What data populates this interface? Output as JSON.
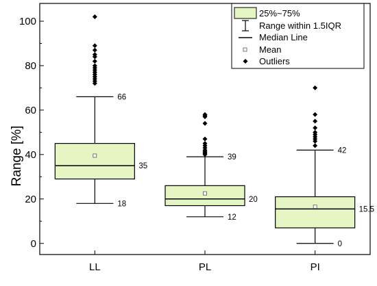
{
  "chart_data": {
    "type": "box",
    "ylabel": "Range [%]",
    "ylim": [
      -5,
      108
    ],
    "yticks": [
      0,
      20,
      40,
      60,
      80,
      100
    ],
    "box_fill": "#e5f5c4",
    "categories": [
      "LL",
      "PL",
      "PI"
    ],
    "boxes": [
      {
        "name": "LL",
        "whisker_low": 18,
        "q1": 29,
        "median": 35,
        "q3": 45,
        "whisker_high": 66,
        "mean": 39.5,
        "labels": {
          "high": "66",
          "median": "35",
          "low": "18"
        },
        "outliers": [
          72,
          73,
          74,
          75,
          76,
          77,
          78,
          79,
          80,
          82,
          84,
          85,
          87,
          89,
          102
        ]
      },
      {
        "name": "PL",
        "whisker_low": 12,
        "q1": 17,
        "median": 20,
        "q3": 26,
        "whisker_high": 39,
        "mean": 22.5,
        "labels": {
          "high": "39",
          "median": "20",
          "low": "12"
        },
        "outliers": [
          40,
          40.5,
          41,
          41.5,
          42,
          43,
          44,
          45,
          47,
          54,
          57,
          57.5,
          58
        ]
      },
      {
        "name": "PI",
        "whisker_low": 0,
        "q1": 7,
        "median": 15.5,
        "q3": 21,
        "whisker_high": 42,
        "mean": 16.5,
        "labels": {
          "high": "42",
          "median": "15.5",
          "low": "0"
        },
        "outliers": [
          44,
          46,
          47,
          48,
          49,
          50,
          52,
          55,
          58,
          70
        ]
      }
    ],
    "legend": {
      "position": "top-right",
      "entries": [
        "25%~75%",
        "Range within 1.5IQR",
        "Median Line",
        "Mean",
        "Outliers"
      ]
    }
  }
}
